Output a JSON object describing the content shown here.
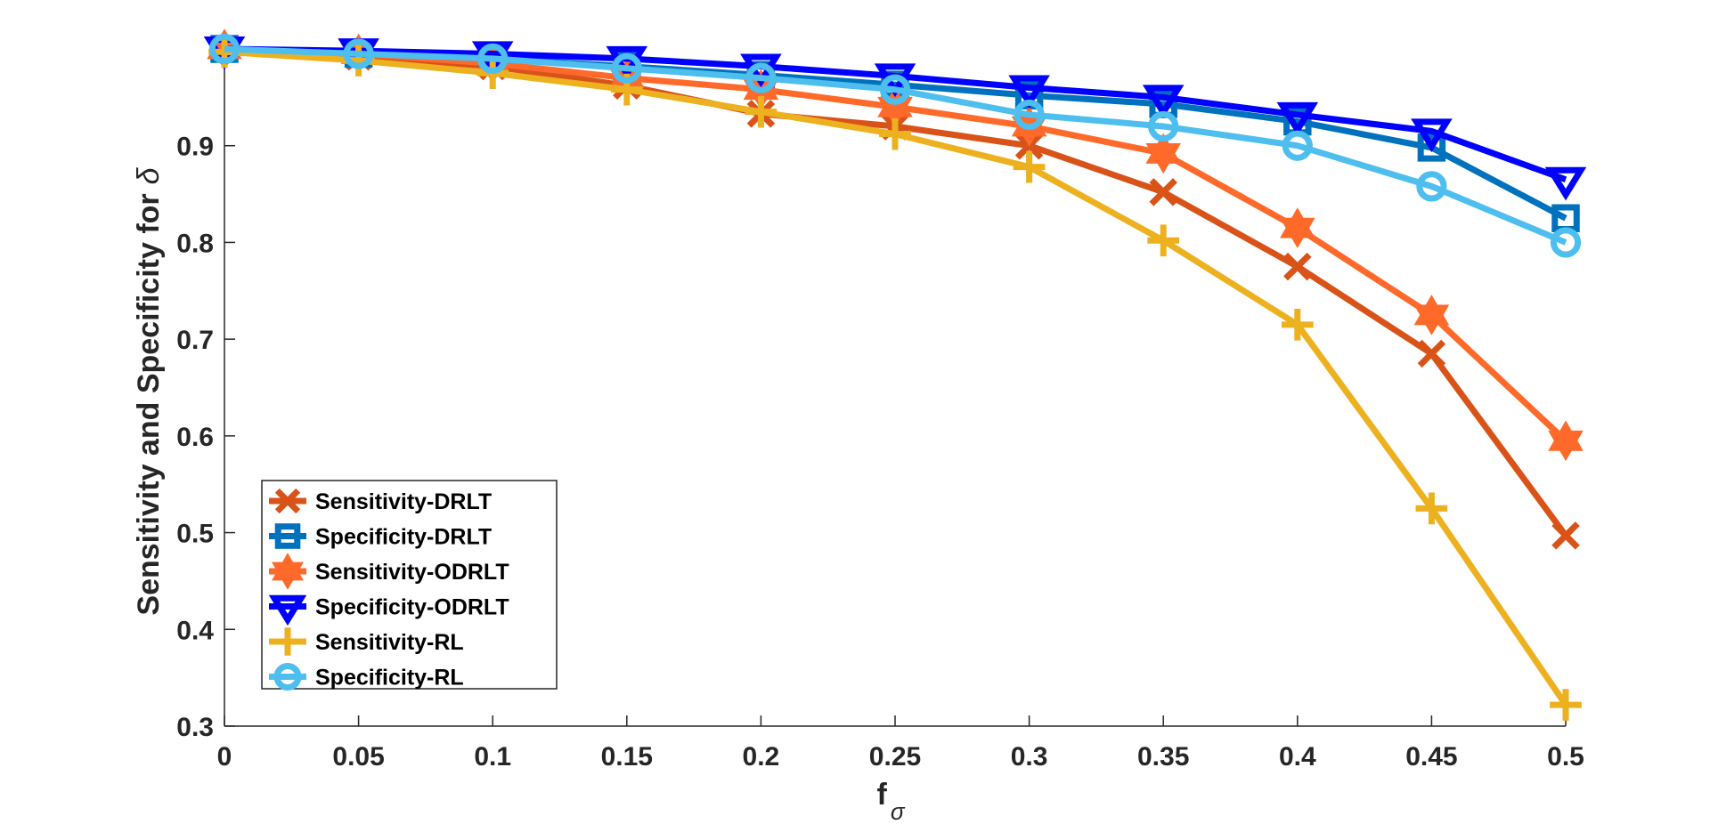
{
  "chart_data": {
    "type": "line",
    "title": "",
    "xlabel": "f",
    "xlabel_subscript": "σ",
    "ylabel": "Sensitivity and Specificity for",
    "ylabel_symbol": "δ",
    "xlim": [
      0,
      0.5
    ],
    "ylim": [
      0.3,
      1.0
    ],
    "x": [
      0,
      0.05,
      0.1,
      0.15,
      0.2,
      0.25,
      0.3,
      0.35,
      0.4,
      0.45,
      0.5
    ],
    "xticks": [
      "0",
      "0.05",
      "0.1",
      "0.15",
      "0.2",
      "0.25",
      "0.3",
      "0.35",
      "0.4",
      "0.45",
      "0.5"
    ],
    "yticks": [
      0.3,
      0.4,
      0.5,
      0.6,
      0.7,
      0.8,
      0.9
    ],
    "ytick_labels": [
      "0.3",
      "0.4",
      "0.5",
      "0.6",
      "0.7",
      "0.8",
      "0.9"
    ],
    "grid": false,
    "legend_position": "lower-left",
    "series": [
      {
        "name": "Sensitivity-DRLT",
        "color": "#D95319",
        "marker": "x",
        "values": [
          1.0,
          0.992,
          0.982,
          0.962,
          0.933,
          0.92,
          0.9,
          0.852,
          0.775,
          0.685,
          0.497
        ]
      },
      {
        "name": "Specificity-DRLT",
        "color": "#0072BD",
        "marker": "square",
        "values": [
          1.0,
          0.995,
          0.99,
          0.982,
          0.973,
          0.963,
          0.952,
          0.943,
          0.925,
          0.898,
          0.825
        ]
      },
      {
        "name": "Sensitivity-ODRLT",
        "color": "#FF6929",
        "marker": "hexagram",
        "values": [
          1.0,
          0.995,
          0.985,
          0.97,
          0.958,
          0.94,
          0.92,
          0.892,
          0.815,
          0.725,
          0.595
        ]
      },
      {
        "name": "Specificity-ODRLT",
        "color": "#0000FF",
        "marker": "triangle-down",
        "values": [
          1.0,
          0.998,
          0.995,
          0.99,
          0.982,
          0.972,
          0.96,
          0.95,
          0.932,
          0.915,
          0.865
        ]
      },
      {
        "name": "Sensitivity-RL",
        "color": "#EDB120",
        "marker": "plus",
        "values": [
          0.997,
          0.988,
          0.975,
          0.958,
          0.935,
          0.912,
          0.878,
          0.802,
          0.715,
          0.525,
          0.322
        ]
      },
      {
        "name": "Specificity-RL",
        "color": "#4DBEEE",
        "marker": "circle",
        "values": [
          1.0,
          0.995,
          0.99,
          0.98,
          0.97,
          0.958,
          0.932,
          0.92,
          0.9,
          0.858,
          0.8
        ]
      }
    ]
  }
}
